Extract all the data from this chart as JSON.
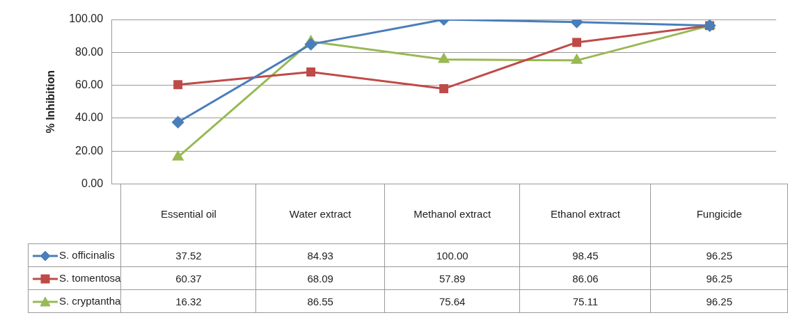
{
  "chart_data": {
    "type": "line",
    "ylabel": "% Inhibition",
    "categories": [
      "Essential oil",
      "Water extract",
      "Methanol extract",
      "Ethanol extract",
      "Fungicide"
    ],
    "series": [
      {
        "name": "S. officinalis",
        "color": "#4a7ebb",
        "marker": "diamond",
        "values": [
          37.52,
          84.93,
          100.0,
          98.45,
          96.25
        ],
        "value_labels": [
          "37.52",
          "84.93",
          "100.00",
          "98.45",
          "96.25"
        ]
      },
      {
        "name": "S. tomentosa",
        "color": "#be4b48",
        "marker": "square",
        "values": [
          60.37,
          68.09,
          57.89,
          86.06,
          96.25
        ],
        "value_labels": [
          "60.37",
          "68.09",
          "57.89",
          "86.06",
          "96.25"
        ]
      },
      {
        "name": "S. cryptantha",
        "color": "#98b954",
        "marker": "triangle",
        "values": [
          16.32,
          86.55,
          75.64,
          75.11,
          96.25
        ],
        "value_labels": [
          "16.32",
          "86.55",
          "75.64",
          "75.11",
          "96.25"
        ]
      }
    ],
    "ylim": [
      0,
      100
    ],
    "yticks": [
      {
        "value": 0,
        "label": "0.00"
      },
      {
        "value": 20,
        "label": "20.00"
      },
      {
        "value": 40,
        "label": "40.00"
      },
      {
        "value": 60,
        "label": "60.00"
      },
      {
        "value": 80,
        "label": "80.00"
      },
      {
        "value": 100,
        "label": "100.00"
      }
    ],
    "grid": "y",
    "legend": "bottom"
  }
}
